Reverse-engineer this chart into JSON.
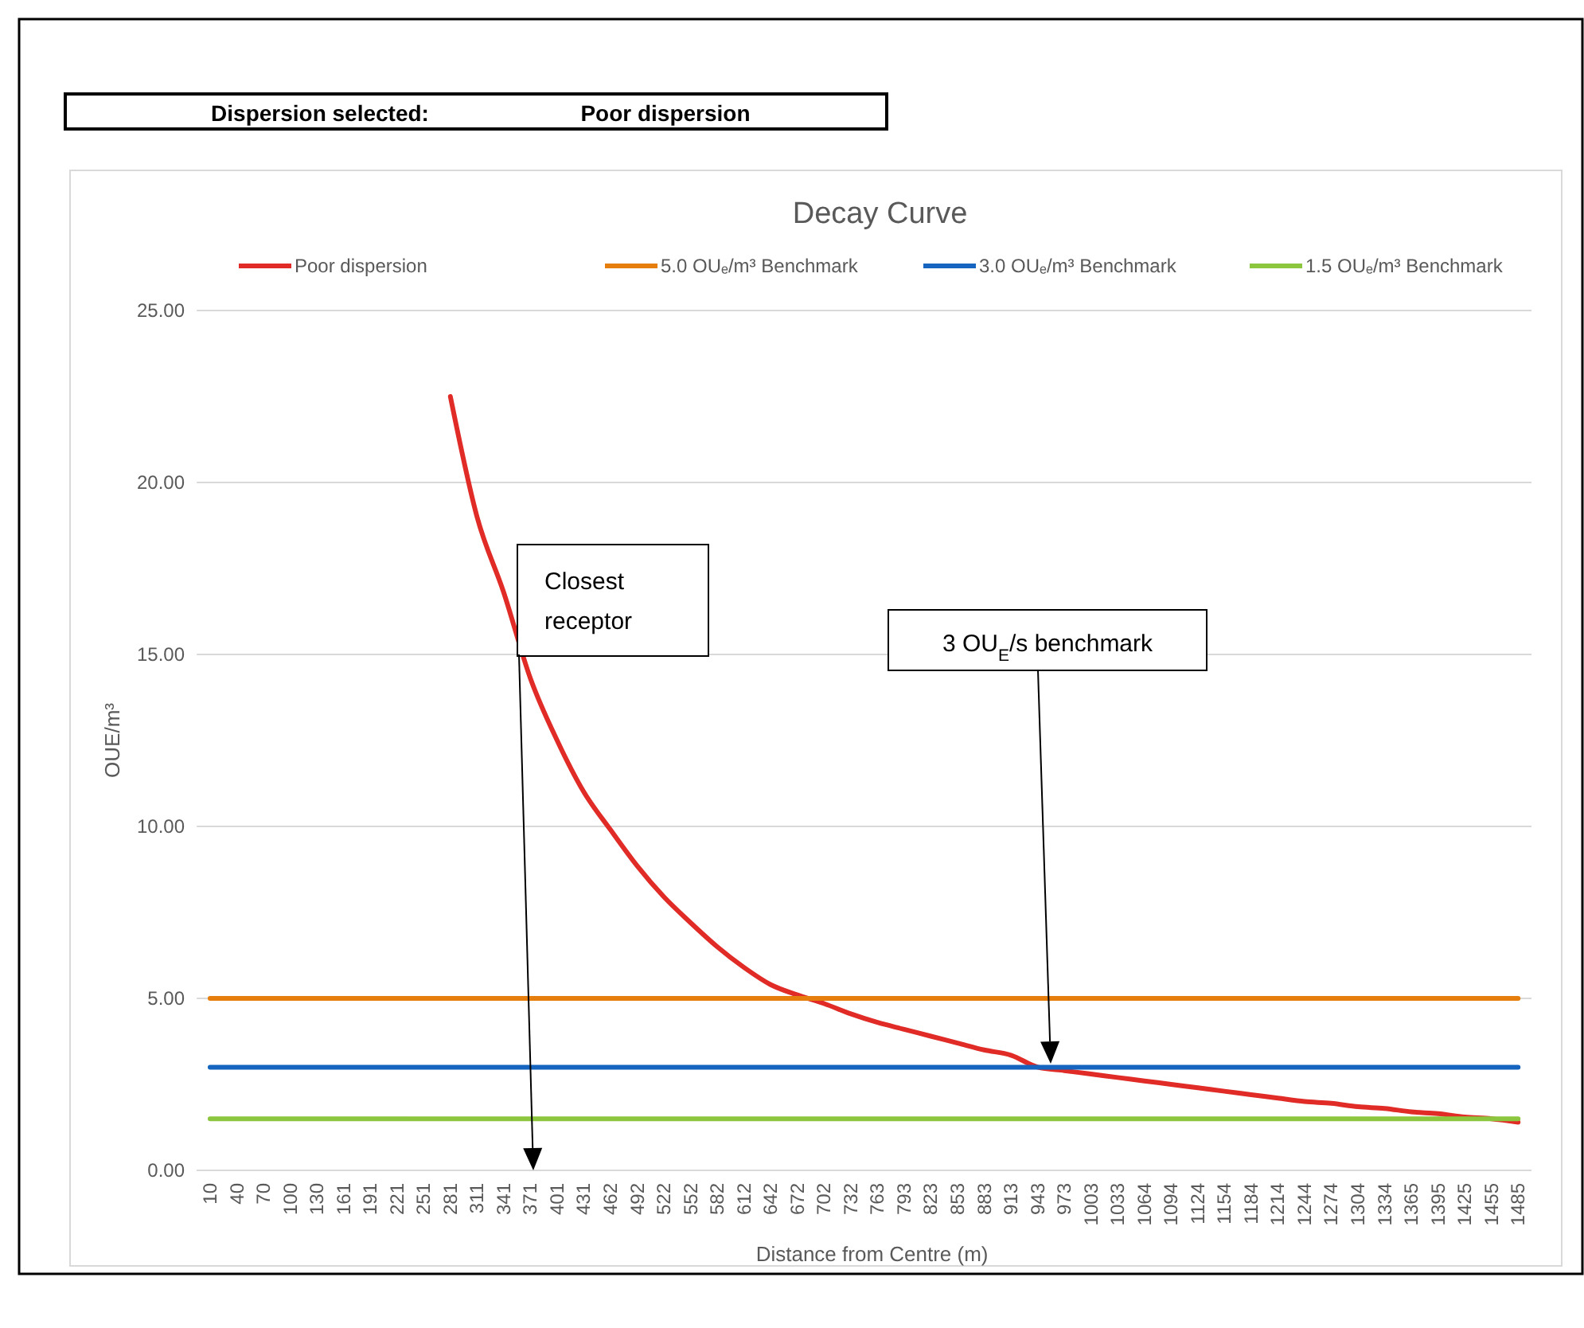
{
  "chart_data": {
    "type": "line",
    "title": "Decay Curve",
    "xlabel": "Distance from Centre (m)",
    "ylabel": "OUE/m³",
    "categories": [
      "10",
      "40",
      "70",
      "100",
      "130",
      "161",
      "191",
      "221",
      "251",
      "281",
      "311",
      "341",
      "371",
      "401",
      "431",
      "462",
      "492",
      "522",
      "552",
      "582",
      "612",
      "642",
      "672",
      "702",
      "732",
      "763",
      "793",
      "823",
      "853",
      "883",
      "913",
      "943",
      "973",
      "1003",
      "1033",
      "1064",
      "1094",
      "1124",
      "1154",
      "1184",
      "1214",
      "1244",
      "1274",
      "1304",
      "1334",
      "1365",
      "1395",
      "1425",
      "1455",
      "1485"
    ],
    "series": [
      {
        "name": "Poor dispersion",
        "color": "#e02b27",
        "values": [
          null,
          null,
          null,
          null,
          null,
          null,
          null,
          null,
          null,
          22.5,
          19.0,
          16.8,
          14.3,
          12.5,
          11.0,
          9.9,
          8.85,
          7.95,
          7.2,
          6.5,
          5.9,
          5.4,
          5.1,
          4.85,
          4.55,
          4.3,
          4.1,
          3.9,
          3.7,
          3.5,
          3.35,
          3.0,
          2.9,
          2.8,
          2.7,
          2.6,
          2.5,
          2.4,
          2.3,
          2.2,
          2.1,
          2.0,
          1.95,
          1.85,
          1.8,
          1.7,
          1.65,
          1.55,
          1.5,
          1.4
        ]
      },
      {
        "name": "5.0 OUₑ/m³ Benchmark",
        "color": "#e67e0e",
        "values": [
          5,
          5,
          5,
          5,
          5,
          5,
          5,
          5,
          5,
          5,
          5,
          5,
          5,
          5,
          5,
          5,
          5,
          5,
          5,
          5,
          5,
          5,
          5,
          5,
          5,
          5,
          5,
          5,
          5,
          5,
          5,
          5,
          5,
          5,
          5,
          5,
          5,
          5,
          5,
          5,
          5,
          5,
          5,
          5,
          5,
          5,
          5,
          5,
          5,
          5
        ]
      },
      {
        "name": "3.0 OUₑ/m³ Benchmark",
        "color": "#1565c0",
        "values": [
          3,
          3,
          3,
          3,
          3,
          3,
          3,
          3,
          3,
          3,
          3,
          3,
          3,
          3,
          3,
          3,
          3,
          3,
          3,
          3,
          3,
          3,
          3,
          3,
          3,
          3,
          3,
          3,
          3,
          3,
          3,
          3,
          3,
          3,
          3,
          3,
          3,
          3,
          3,
          3,
          3,
          3,
          3,
          3,
          3,
          3,
          3,
          3,
          3,
          3
        ]
      },
      {
        "name": "1.5 OUₑ/m³ Benchmark",
        "color": "#8cc63f",
        "values": [
          1.5,
          1.5,
          1.5,
          1.5,
          1.5,
          1.5,
          1.5,
          1.5,
          1.5,
          1.5,
          1.5,
          1.5,
          1.5,
          1.5,
          1.5,
          1.5,
          1.5,
          1.5,
          1.5,
          1.5,
          1.5,
          1.5,
          1.5,
          1.5,
          1.5,
          1.5,
          1.5,
          1.5,
          1.5,
          1.5,
          1.5,
          1.5,
          1.5,
          1.5,
          1.5,
          1.5,
          1.5,
          1.5,
          1.5,
          1.5,
          1.5,
          1.5,
          1.5,
          1.5,
          1.5,
          1.5,
          1.5,
          1.5,
          1.5,
          1.5
        ]
      }
    ],
    "ylim": [
      0,
      25
    ],
    "yticks": [
      {
        "value": 0,
        "label": "0.00"
      },
      {
        "value": 5,
        "label": "5.00"
      },
      {
        "value": 10,
        "label": "10.00"
      },
      {
        "value": 15,
        "label": "15.00"
      },
      {
        "value": 20,
        "label": "20.00"
      },
      {
        "value": 25,
        "label": "25.00"
      }
    ],
    "grid": "y",
    "legend": "top",
    "marker": "none",
    "line_style": "solid",
    "annotations": [
      "Dispersion selected:",
      "Poor dispersion",
      "Closest receptor",
      "3 OU$_{E}$/s benchmark"
    ]
  }
}
